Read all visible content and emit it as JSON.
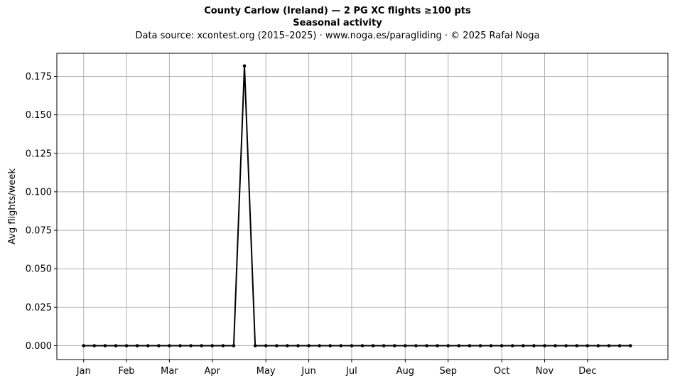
{
  "titles": {
    "line1": "County Carlow (Ireland)  —  2 PG XC flights ≥100 pts",
    "line2": "Seasonal activity",
    "line3": "Data source: xcontest.org (2015–2025)  ·  www.noga.es/paragliding  ·  © 2025 Rafał Noga"
  },
  "chart_data": {
    "type": "line",
    "title": "County Carlow (Ireland)  —  2 PG XC flights ≥100 pts",
    "subtitle": "Seasonal activity",
    "xlabel": "",
    "ylabel": "Avg flights/week",
    "x_unit": "week of year",
    "xlim": [
      -2.5,
      54.5
    ],
    "ylim": [
      -0.009,
      0.19
    ],
    "grid": true,
    "line_color": "#000000",
    "grid_color": "#b0b0b0",
    "y_ticks": [
      0.0,
      0.025,
      0.05,
      0.075,
      0.1,
      0.125,
      0.15,
      0.175
    ],
    "y_tick_labels": [
      "0.000",
      "0.025",
      "0.050",
      "0.075",
      "0.100",
      "0.125",
      "0.150",
      "0.175"
    ],
    "x_ticks": [
      0,
      4,
      8,
      12,
      17,
      21,
      25,
      30,
      34,
      39,
      43,
      47
    ],
    "x_tick_labels": [
      "Jan",
      "Feb",
      "Mar",
      "Apr",
      "May",
      "Jun",
      "Jul",
      "Aug",
      "Sep",
      "Oct",
      "Nov",
      "Dec"
    ],
    "series": [
      {
        "x": [
          0,
          1,
          2,
          3,
          4,
          5,
          6,
          7,
          8,
          9,
          10,
          11,
          12,
          13,
          14,
          15,
          16,
          17,
          18,
          19,
          20,
          21,
          22,
          23,
          24,
          25,
          26,
          27,
          28,
          29,
          30,
          31,
          32,
          33,
          34,
          35,
          36,
          37,
          38,
          39,
          40,
          41,
          42,
          43,
          44,
          45,
          46,
          47,
          48,
          49,
          50,
          51
        ],
        "values": [
          0,
          0,
          0,
          0,
          0,
          0,
          0,
          0,
          0,
          0,
          0,
          0,
          0,
          0,
          0,
          0.1818,
          0,
          0,
          0,
          0,
          0,
          0,
          0,
          0,
          0,
          0,
          0,
          0,
          0,
          0,
          0,
          0,
          0,
          0,
          0,
          0,
          0,
          0,
          0,
          0,
          0,
          0,
          0,
          0,
          0,
          0,
          0,
          0,
          0,
          0,
          0,
          0
        ]
      }
    ]
  }
}
